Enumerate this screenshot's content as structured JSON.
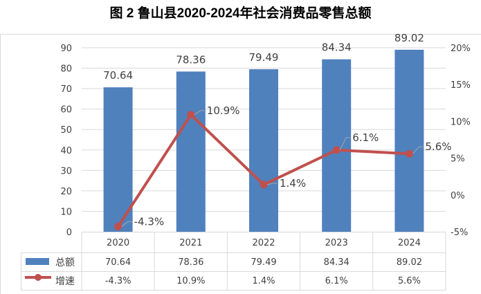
{
  "title": "图 2 鲁山县2020-2024年社会消费品零售总额",
  "chart_data": {
    "type": "bar+line",
    "title": "图 2 鲁山县2020-2024年社会消费品零售总额",
    "categories": [
      "2020",
      "2021",
      "2022",
      "2023",
      "2024"
    ],
    "series": [
      {
        "name": "总额",
        "type": "bar",
        "axis": "left",
        "values": [
          70.64,
          78.36,
          79.49,
          84.34,
          89.02
        ],
        "labels": [
          "70.64",
          "78.36",
          "79.49",
          "84.34",
          "89.02"
        ],
        "color": "#4f81bd"
      },
      {
        "name": "增速",
        "type": "line",
        "axis": "right",
        "values": [
          -4.3,
          10.9,
          1.4,
          6.1,
          5.6
        ],
        "labels": [
          "-4.3%",
          "10.9%",
          "1.4%",
          "6.1%",
          "5.6%"
        ],
        "color": "#c0504d"
      }
    ],
    "left_axis": {
      "ylim": [
        0,
        90
      ],
      "ticks": [
        "0",
        "10",
        "20",
        "30",
        "40",
        "50",
        "60",
        "70",
        "80",
        "90"
      ]
    },
    "right_axis": {
      "ylim": [
        -5,
        20
      ],
      "ticks": [
        "-5%",
        "0%",
        "5%",
        "10%",
        "15%",
        "20%"
      ]
    },
    "grid": true,
    "legend": "data-table"
  }
}
